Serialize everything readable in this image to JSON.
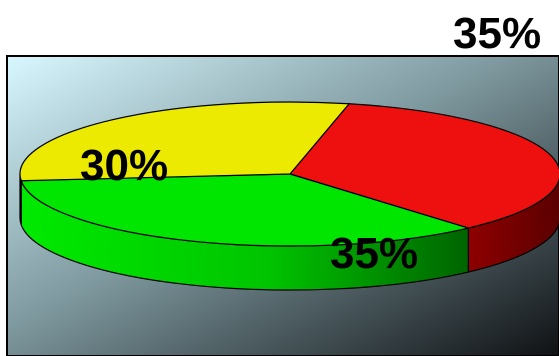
{
  "chart_data": {
    "type": "pie",
    "style": "3d",
    "slices": [
      {
        "label": "35%",
        "value": 35,
        "color": "#ee0f0f"
      },
      {
        "label": "35%",
        "value": 35,
        "color": "#00e600"
      },
      {
        "label": "30%",
        "value": 30,
        "color": "#ecea00"
      }
    ],
    "legend": "none",
    "background_gradient": [
      "#d8f8ff",
      "#0f1114"
    ]
  }
}
